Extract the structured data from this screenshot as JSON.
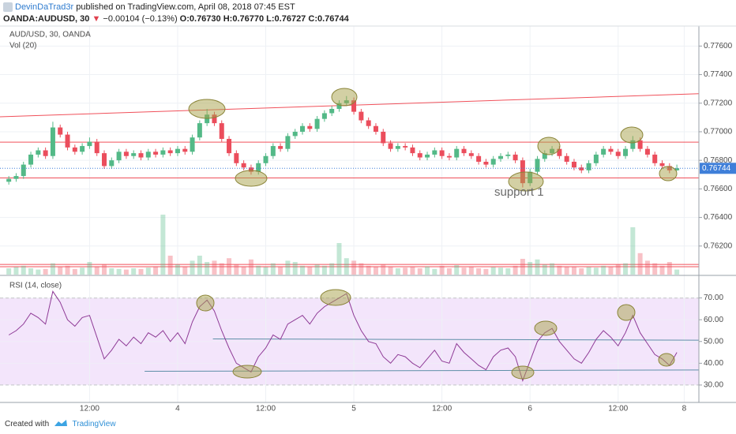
{
  "header": {
    "author": "DevinDaTrad3r",
    "published": " published on TradingView.com, April 08, 2018 07:45 EST",
    "symbol": "OANDA:AUDUSD, 30",
    "change": "−0.00104 (−0.13%)",
    "ohlc": [
      "O:0.76730",
      "H:0.76770",
      "L:0.76727",
      "C:0.76744"
    ]
  },
  "footer": {
    "created": "Created with",
    "brand": "TradingView"
  },
  "chart_data": [
    {
      "type": "candlestick",
      "title": "AUD/USD, 30, OANDA",
      "volume_title": "Vol (20)",
      "annotation": "support 1",
      "open": [
        0.7665,
        0.7667,
        0.7669,
        0.7677,
        0.7684,
        0.7687,
        0.7683,
        0.7703,
        0.7698,
        0.7689,
        0.7686,
        0.769,
        0.7693,
        0.7685,
        0.7676,
        0.768,
        0.7686,
        0.7683,
        0.7685,
        0.7682,
        0.7686,
        0.7684,
        0.7687,
        0.7685,
        0.7688,
        0.7686,
        0.7696,
        0.7706,
        0.7712,
        0.7706,
        0.7695,
        0.7685,
        0.7678,
        0.7675,
        0.7672,
        0.7678,
        0.7683,
        0.769,
        0.7688,
        0.7697,
        0.77,
        0.7704,
        0.7702,
        0.7709,
        0.7713,
        0.7716,
        0.772,
        0.7722,
        0.7714,
        0.7708,
        0.7704,
        0.77,
        0.7692,
        0.7688,
        0.769,
        0.7689,
        0.7685,
        0.7682,
        0.7684,
        0.7687,
        0.7683,
        0.7682,
        0.7688,
        0.7685,
        0.7683,
        0.7679,
        0.7677,
        0.7681,
        0.7683,
        0.7684,
        0.768,
        0.7664,
        0.7672,
        0.7681,
        0.7685,
        0.7688,
        0.7683,
        0.7679,
        0.7675,
        0.7673,
        0.7678,
        0.7684,
        0.7688,
        0.7686,
        0.7683,
        0.7688,
        0.7694,
        0.7688,
        0.7684,
        0.7678,
        0.7676,
        0.7673
      ],
      "high": [
        0.7669,
        0.7671,
        0.7679,
        0.7686,
        0.7689,
        0.7689,
        0.7707,
        0.7705,
        0.77,
        0.7691,
        0.7692,
        0.7696,
        0.7695,
        0.7687,
        0.7682,
        0.7688,
        0.7688,
        0.7687,
        0.7687,
        0.7688,
        0.7688,
        0.7689,
        0.7689,
        0.769,
        0.769,
        0.7698,
        0.7708,
        0.7716,
        0.7714,
        0.7708,
        0.7697,
        0.7687,
        0.768,
        0.7677,
        0.768,
        0.7685,
        0.7692,
        0.7692,
        0.7699,
        0.7702,
        0.7706,
        0.7706,
        0.7711,
        0.7715,
        0.7718,
        0.7722,
        0.7725,
        0.7724,
        0.7716,
        0.771,
        0.7706,
        0.7702,
        0.7694,
        0.7692,
        0.7692,
        0.7691,
        0.7687,
        0.7686,
        0.7689,
        0.7689,
        0.7685,
        0.769,
        0.769,
        0.7687,
        0.7685,
        0.7681,
        0.7683,
        0.7685,
        0.7686,
        0.7686,
        0.7682,
        0.7674,
        0.7683,
        0.7687,
        0.769,
        0.769,
        0.7685,
        0.7681,
        0.7677,
        0.768,
        0.7686,
        0.769,
        0.769,
        0.7688,
        0.769,
        0.7697,
        0.7696,
        0.769,
        0.7686,
        0.768,
        0.7678,
        0.7677
      ],
      "low": [
        0.7663,
        0.7665,
        0.7667,
        0.7675,
        0.7682,
        0.7681,
        0.7681,
        0.7696,
        0.7687,
        0.7684,
        0.7684,
        0.7688,
        0.7683,
        0.7674,
        0.7674,
        0.7678,
        0.7681,
        0.7681,
        0.768,
        0.768,
        0.7682,
        0.7682,
        0.7683,
        0.7683,
        0.7684,
        0.7684,
        0.7694,
        0.7704,
        0.7704,
        0.7693,
        0.7683,
        0.7676,
        0.7673,
        0.767,
        0.767,
        0.7676,
        0.7681,
        0.7686,
        0.7686,
        0.7695,
        0.7698,
        0.77,
        0.77,
        0.7707,
        0.7711,
        0.7714,
        0.7718,
        0.7712,
        0.7706,
        0.7702,
        0.7698,
        0.769,
        0.7686,
        0.7686,
        0.7687,
        0.7683,
        0.768,
        0.768,
        0.7682,
        0.7681,
        0.768,
        0.768,
        0.7683,
        0.7681,
        0.7677,
        0.7675,
        0.7675,
        0.7679,
        0.7681,
        0.7678,
        0.7661,
        0.7662,
        0.767,
        0.7679,
        0.7683,
        0.7681,
        0.7677,
        0.7673,
        0.7671,
        0.7671,
        0.7676,
        0.7682,
        0.7684,
        0.7681,
        0.7681,
        0.7686,
        0.7686,
        0.7682,
        0.7676,
        0.7674,
        0.7671,
        0.76727
      ],
      "close": [
        0.7667,
        0.7669,
        0.7677,
        0.7684,
        0.7687,
        0.7683,
        0.7703,
        0.7698,
        0.7689,
        0.7686,
        0.769,
        0.7693,
        0.7685,
        0.7676,
        0.768,
        0.7686,
        0.7683,
        0.7685,
        0.7682,
        0.7686,
        0.7684,
        0.7687,
        0.7685,
        0.7688,
        0.7686,
        0.7696,
        0.7706,
        0.7712,
        0.7706,
        0.7695,
        0.7685,
        0.7678,
        0.7675,
        0.7672,
        0.7678,
        0.7683,
        0.769,
        0.7688,
        0.7697,
        0.77,
        0.7704,
        0.7702,
        0.7709,
        0.7713,
        0.7716,
        0.772,
        0.7722,
        0.7714,
        0.7708,
        0.7704,
        0.77,
        0.7692,
        0.7688,
        0.769,
        0.7689,
        0.7685,
        0.7682,
        0.7684,
        0.7687,
        0.7683,
        0.7682,
        0.7688,
        0.7685,
        0.7683,
        0.7679,
        0.7677,
        0.7681,
        0.7683,
        0.7684,
        0.768,
        0.7664,
        0.7672,
        0.7681,
        0.7685,
        0.7688,
        0.7683,
        0.7679,
        0.7675,
        0.7673,
        0.7678,
        0.7684,
        0.7688,
        0.7686,
        0.7683,
        0.7688,
        0.7694,
        0.7688,
        0.7684,
        0.7678,
        0.7676,
        0.7673,
        0.76744
      ],
      "volume": [
        10,
        12,
        14,
        10,
        8,
        9,
        18,
        12,
        14,
        9,
        11,
        20,
        13,
        16,
        10,
        9,
        8,
        10,
        9,
        11,
        13,
        95,
        30,
        16,
        12,
        22,
        30,
        20,
        22,
        18,
        26,
        16,
        12,
        24,
        14,
        12,
        18,
        12,
        22,
        20,
        14,
        12,
        16,
        14,
        18,
        50,
        26,
        22,
        18,
        14,
        12,
        16,
        12,
        10,
        11,
        12,
        10,
        13,
        9,
        14,
        10,
        15,
        11,
        12,
        10,
        9,
        12,
        11,
        10,
        14,
        25,
        20,
        24,
        16,
        18,
        14,
        12,
        13,
        10,
        12,
        11,
        14,
        12,
        16,
        18,
        75,
        34,
        22,
        18,
        14,
        20,
        8
      ],
      "up_color": "#53b987",
      "down_color": "#eb4d5c",
      "last_color": "#3f7fd9",
      "line_color": "#f0505a",
      "ylim": [
        0.76,
        0.7774
      ],
      "yticks": [
        {
          "value": 0.762,
          "label": "0.76200"
        },
        {
          "value": 0.764,
          "label": "0.76400"
        },
        {
          "value": 0.766,
          "label": "0.76600"
        },
        {
          "value": 0.768,
          "label": "0.76800"
        },
        {
          "value": 0.77,
          "label": "0.77000"
        },
        {
          "value": 0.772,
          "label": "0.77200"
        },
        {
          "value": 0.774,
          "label": "0.77400"
        },
        {
          "value": 0.776,
          "label": "0.77600"
        }
      ],
      "vlim": [
        0,
        100
      ],
      "xlim": [
        -1.2,
        94
      ],
      "xticks": [
        {
          "value": 11,
          "label": "12:00"
        },
        {
          "value": 23,
          "label": "4"
        },
        {
          "value": 35,
          "label": "12:00"
        },
        {
          "value": 47,
          "label": "5"
        },
        {
          "value": 59,
          "label": "12:00"
        },
        {
          "value": 71,
          "label": "6"
        },
        {
          "value": 83,
          "label": "12:00"
        },
        {
          "value": 92,
          "label": "8"
        }
      ],
      "grid": true,
      "trendlines": [
        {
          "x": [
            -1.2,
            94
          ],
          "y": [
            0.77105,
            0.77266
          ]
        }
      ],
      "levels": [
        0.76927,
        0.76677,
        0.76071,
        0.76055
      ]
    },
    {
      "type": "line",
      "title": "RSI (14, close)",
      "values": [
        53,
        55,
        58,
        63,
        61,
        58,
        73,
        68,
        60,
        57,
        61,
        62,
        52,
        42,
        46,
        51,
        48,
        52,
        49,
        54,
        52,
        55,
        50,
        54,
        49,
        59,
        66,
        69,
        64,
        55,
        47,
        40,
        38,
        36,
        43,
        47,
        53,
        51,
        58,
        60,
        62,
        58,
        63,
        66,
        68,
        70,
        72,
        62,
        55,
        50,
        49,
        43,
        40,
        44,
        43,
        40,
        38,
        42,
        46,
        41,
        40,
        49,
        45,
        42,
        39,
        37,
        43,
        46,
        47,
        43,
        32,
        41,
        50,
        54,
        56,
        50,
        46,
        42,
        40,
        45,
        51,
        55,
        52,
        48,
        54,
        62,
        54,
        49,
        44,
        42,
        39,
        45
      ],
      "color": "#8e3a96",
      "band": [
        30,
        70
      ],
      "band_color": "#f3e5fb",
      "trend_color": "#5f8fa8",
      "ylim": [
        22,
        80
      ],
      "yticks": [
        {
          "value": 30,
          "label": "30.00"
        },
        {
          "value": 40,
          "label": "40.00"
        },
        {
          "value": 50,
          "label": "50.00"
        },
        {
          "value": 60,
          "label": "60.00"
        },
        {
          "value": 70,
          "label": "70.00"
        }
      ],
      "trendlines": [
        {
          "x": [
            27.8,
            94
          ],
          "y": [
            51.2,
            50.6
          ]
        },
        {
          "x": [
            18.5,
            94
          ],
          "y": [
            36.3,
            36.9
          ]
        }
      ]
    }
  ]
}
